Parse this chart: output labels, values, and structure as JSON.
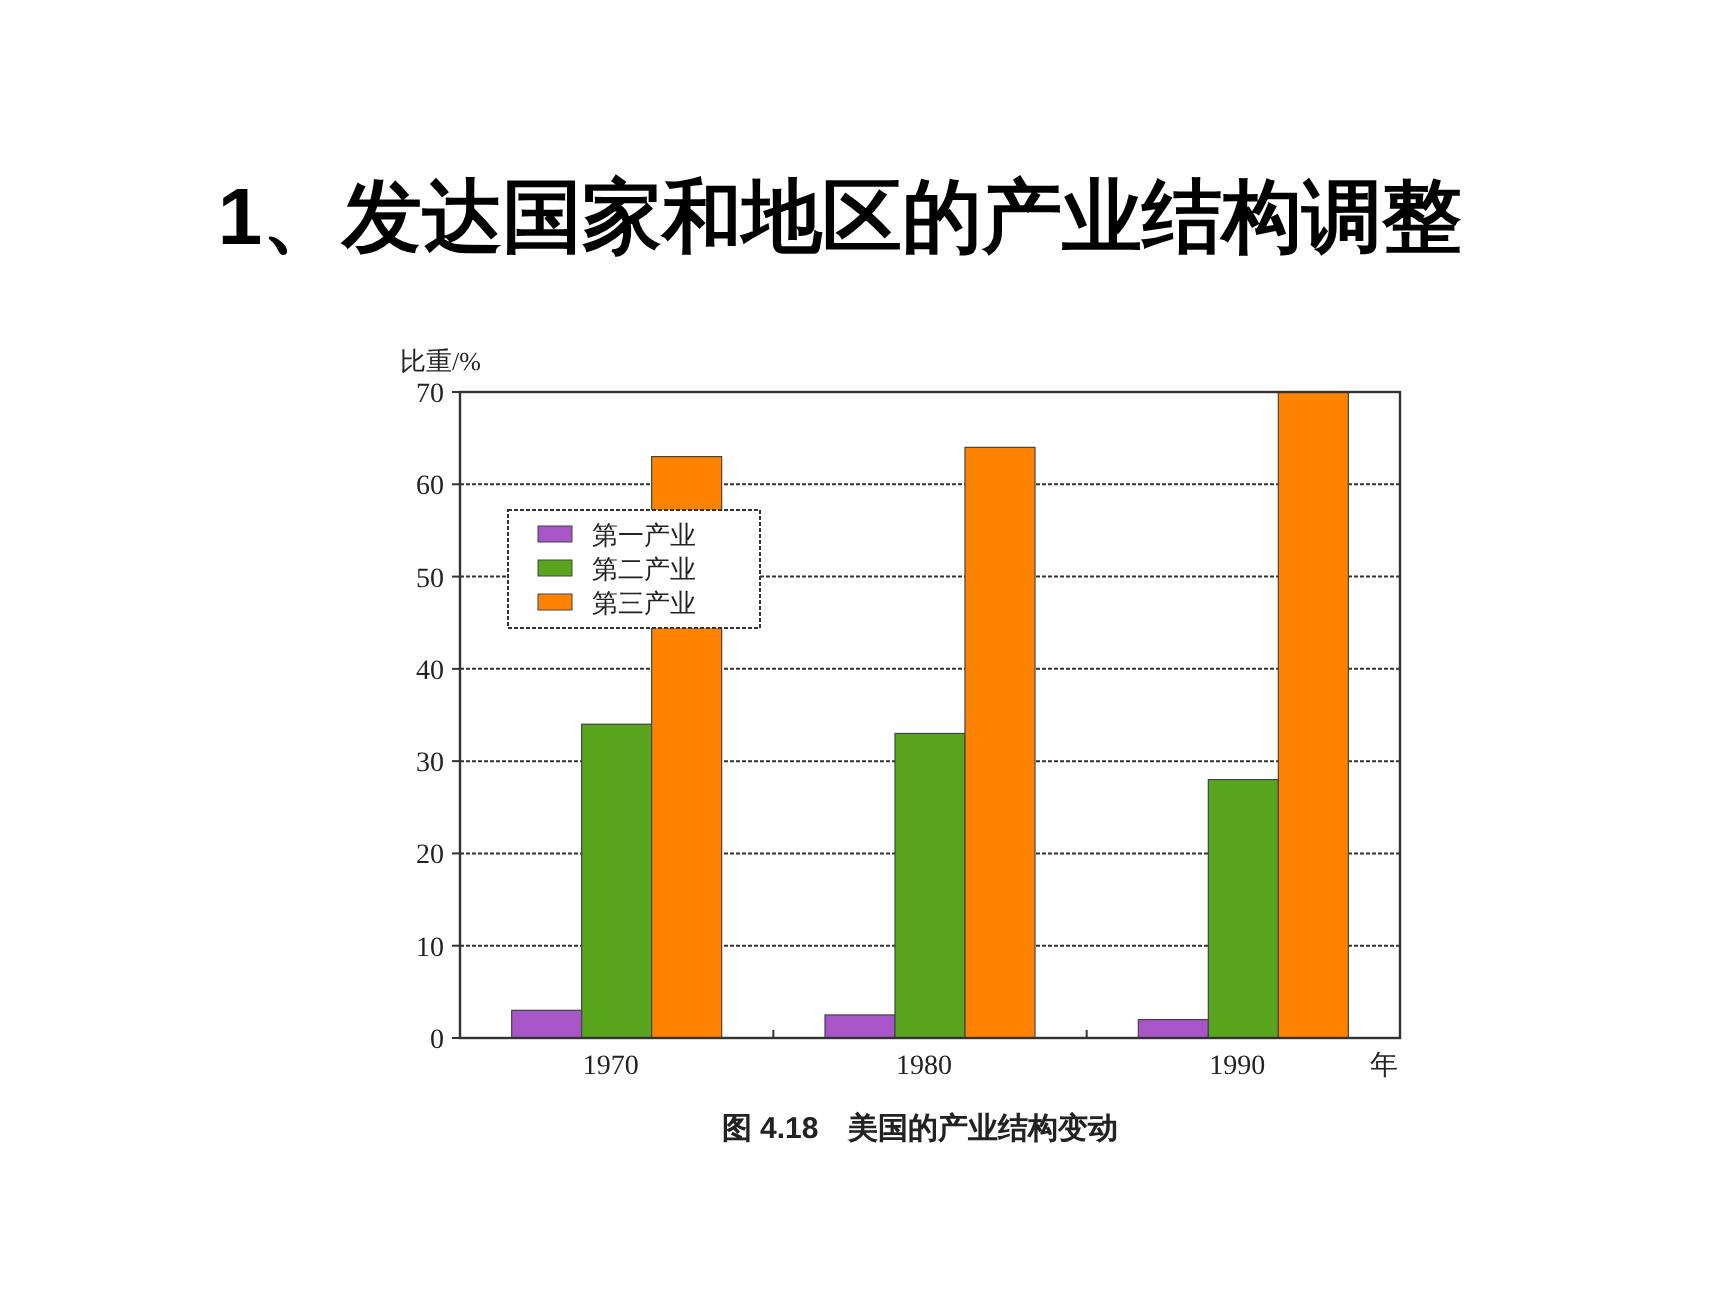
{
  "chart_data": {
    "type": "bar",
    "title": "1、发达国家和地区的产业结构调整",
    "ylabel": "比重/%",
    "xlabel": "年",
    "annotations": [
      "图 4.18　美国的产业结构变动"
    ],
    "categories": [
      "1970",
      "1980",
      "1990"
    ],
    "series": [
      {
        "name": "第一产业",
        "color": "#a855c8",
        "values": [
          3,
          2.5,
          2
        ]
      },
      {
        "name": "第二产业",
        "color": "#5aa51e",
        "values": [
          34,
          33,
          28
        ]
      },
      {
        "name": "第三产业",
        "color": "#ff8200",
        "values": [
          63,
          64,
          70
        ]
      }
    ],
    "ylim": [
      0,
      70
    ],
    "yticks": [
      0,
      10,
      20,
      30,
      40,
      50,
      60,
      70
    ],
    "grid": "y",
    "legend": "top left"
  }
}
